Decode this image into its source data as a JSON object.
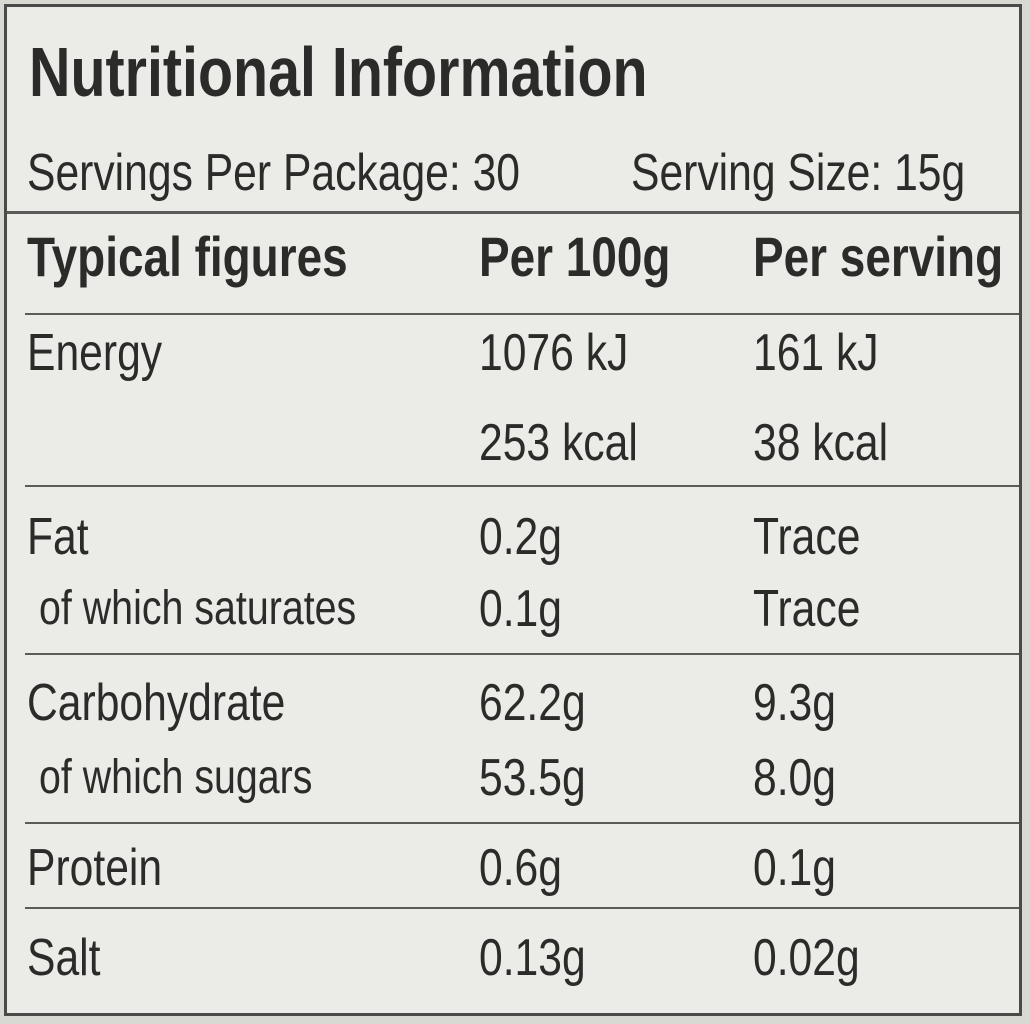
{
  "title": "Nutritional Information",
  "servings": {
    "per_package": "Servings Per Package: 30",
    "size": "Serving Size: 15g"
  },
  "table": {
    "header": [
      "Typical figures",
      "Per 100g",
      "Per serving"
    ],
    "groups": [
      {
        "rows": [
          {
            "label": "Energy",
            "per_100g": "1076 kJ",
            "per_serving": "161 kJ"
          },
          {
            "per_100g": "253 kcal",
            "per_serving": "38 kcal"
          }
        ]
      },
      {
        "rows": [
          {
            "label": "Fat",
            "per_100g": "0.2g",
            "per_serving": "Trace"
          },
          {
            "label": "of which saturates",
            "per_100g": "0.1g",
            "per_serving": "Trace"
          }
        ]
      },
      {
        "rows": [
          {
            "label": "Carbohydrate",
            "per_100g": "62.2g",
            "per_serving": "9.3g"
          },
          {
            "label": "of which sugars",
            "per_100g": "53.5g",
            "per_serving": "8.0g"
          }
        ]
      },
      {
        "rows": [
          {
            "label": "Protein",
            "per_100g": "0.6g",
            "per_serving": "0.1g"
          }
        ]
      },
      {
        "rows": [
          {
            "label": "Salt",
            "per_100g": "0.13g",
            "per_serving": "0.02g"
          }
        ]
      }
    ]
  }
}
